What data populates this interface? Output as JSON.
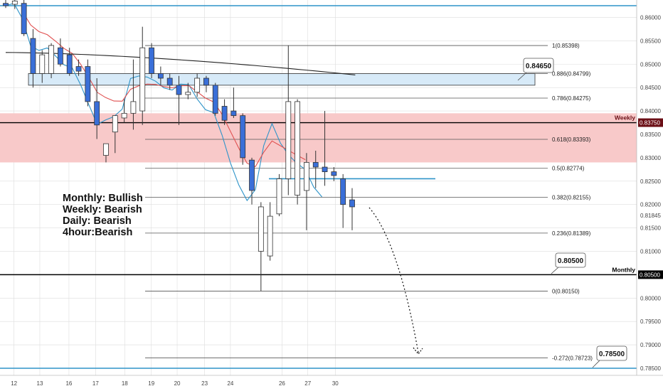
{
  "chart_data": {
    "type": "candlestick",
    "symbol_pair_note": "",
    "ylim": [
      0.7835,
      0.8645
    ],
    "price_axis": {
      "ticks": [
        "0.86000",
        "0.85500",
        "0.85000",
        "0.84500",
        "0.84000",
        "0.83500",
        "0.83000",
        "0.82500",
        "0.82000",
        "0.81500",
        "0.81000",
        "0.80500",
        "0.80000",
        "0.79500",
        "0.79000",
        "0.78500"
      ],
      "tick_values": [
        0.86,
        0.855,
        0.85,
        0.845,
        0.84,
        0.835,
        0.83,
        0.825,
        0.82,
        0.815,
        0.81,
        0.805,
        0.8,
        0.795,
        0.79,
        0.785
      ],
      "badges": [
        {
          "text": "Weekly",
          "value": 0.8375,
          "kind": "label",
          "color": "#6b0f16"
        },
        {
          "text": "0.83750",
          "value": 0.8375,
          "kind": "price",
          "bg": "#6b0f16"
        },
        {
          "text": "0.81845",
          "value": 0.81845,
          "kind": "plain"
        },
        {
          "text": "Monthly",
          "value": 0.805,
          "kind": "label",
          "color": "#000000"
        },
        {
          "text": "0.80500",
          "value": 0.805,
          "kind": "price",
          "bg": "#000000"
        }
      ]
    },
    "time_axis": {
      "labels": [
        "12",
        "13",
        "16",
        "17",
        "18",
        "19",
        "20",
        "23",
        "24",
        "26",
        "27",
        "30"
      ],
      "x_index": [
        1,
        4.1,
        7.6,
        10.8,
        14.3,
        17.5,
        20.6,
        23.9,
        27.0,
        33.2,
        36.3,
        39.6
      ]
    },
    "candles": [
      {
        "o": 0.863,
        "h": 0.864,
        "l": 0.862,
        "c": 0.8625
      },
      {
        "o": 0.8628,
        "h": 0.864,
        "l": 0.8618,
        "c": 0.8635
      },
      {
        "o": 0.863,
        "h": 0.8638,
        "l": 0.856,
        "c": 0.8565
      },
      {
        "o": 0.8555,
        "h": 0.8575,
        "l": 0.845,
        "c": 0.848
      },
      {
        "o": 0.848,
        "h": 0.853,
        "l": 0.846,
        "c": 0.852
      },
      {
        "o": 0.848,
        "h": 0.8545,
        "l": 0.847,
        "c": 0.854
      },
      {
        "o": 0.8535,
        "h": 0.8555,
        "l": 0.8495,
        "c": 0.85
      },
      {
        "o": 0.852,
        "h": 0.8535,
        "l": 0.8475,
        "c": 0.848
      },
      {
        "o": 0.8495,
        "h": 0.851,
        "l": 0.8475,
        "c": 0.8485
      },
      {
        "o": 0.8495,
        "h": 0.851,
        "l": 0.841,
        "c": 0.842
      },
      {
        "o": 0.842,
        "h": 0.847,
        "l": 0.834,
        "c": 0.837
      },
      {
        "o": 0.8305,
        "h": 0.833,
        "l": 0.829,
        "c": 0.833
      },
      {
        "o": 0.8355,
        "h": 0.839,
        "l": 0.831,
        "c": 0.839
      },
      {
        "o": 0.8385,
        "h": 0.8425,
        "l": 0.8375,
        "c": 0.8395
      },
      {
        "o": 0.8395,
        "h": 0.851,
        "l": 0.836,
        "c": 0.842
      },
      {
        "o": 0.84,
        "h": 0.858,
        "l": 0.837,
        "c": 0.8535
      },
      {
        "o": 0.8535,
        "h": 0.8545,
        "l": 0.847,
        "c": 0.848
      },
      {
        "o": 0.848,
        "h": 0.8495,
        "l": 0.8455,
        "c": 0.847
      },
      {
        "o": 0.847,
        "h": 0.848,
        "l": 0.8445,
        "c": 0.8455
      },
      {
        "o": 0.8455,
        "h": 0.8475,
        "l": 0.837,
        "c": 0.8435
      },
      {
        "o": 0.8435,
        "h": 0.846,
        "l": 0.8425,
        "c": 0.844
      },
      {
        "o": 0.844,
        "h": 0.848,
        "l": 0.843,
        "c": 0.847
      },
      {
        "o": 0.847,
        "h": 0.8475,
        "l": 0.844,
        "c": 0.8455
      },
      {
        "o": 0.8455,
        "h": 0.846,
        "l": 0.839,
        "c": 0.8395
      },
      {
        "o": 0.841,
        "h": 0.8425,
        "l": 0.837,
        "c": 0.838
      },
      {
        "o": 0.84,
        "h": 0.845,
        "l": 0.8385,
        "c": 0.839
      },
      {
        "o": 0.839,
        "h": 0.8395,
        "l": 0.8285,
        "c": 0.83
      },
      {
        "o": 0.8295,
        "h": 0.83,
        "l": 0.82,
        "c": 0.823
      },
      {
        "o": 0.81,
        "h": 0.8205,
        "l": 0.8015,
        "c": 0.8195
      },
      {
        "o": 0.809,
        "h": 0.8205,
        "l": 0.808,
        "c": 0.8175
      },
      {
        "o": 0.818,
        "h": 0.8265,
        "l": 0.8175,
        "c": 0.8255
      },
      {
        "o": 0.8255,
        "h": 0.854,
        "l": 0.822,
        "c": 0.842
      },
      {
        "o": 0.822,
        "h": 0.8425,
        "l": 0.82,
        "c": 0.842
      },
      {
        "o": 0.823,
        "h": 0.831,
        "l": 0.8145,
        "c": 0.829
      },
      {
        "o": 0.829,
        "h": 0.8315,
        "l": 0.8235,
        "c": 0.828
      },
      {
        "o": 0.828,
        "h": 0.84,
        "l": 0.824,
        "c": 0.827
      },
      {
        "o": 0.827,
        "h": 0.828,
        "l": 0.825,
        "c": 0.8262
      },
      {
        "o": 0.8255,
        "h": 0.8265,
        "l": 0.815,
        "c": 0.82
      },
      {
        "o": 0.821,
        "h": 0.8235,
        "l": 0.8145,
        "c": 0.8195
      }
    ],
    "fib_levels": [
      {
        "label": "1(0.85398)",
        "value": 0.85398
      },
      {
        "label": "0.886(0.84799)",
        "value": 0.84799
      },
      {
        "label": "0.786(0.84275)",
        "value": 0.84275
      },
      {
        "label": "0.618(0.83393)",
        "value": 0.83393
      },
      {
        "label": "0.5(0.82774)",
        "value": 0.82774
      },
      {
        "label": "0.382(0.82155)",
        "value": 0.82155
      },
      {
        "label": "0.236(0.81389)",
        "value": 0.81389
      },
      {
        "label": "0(0.80150)",
        "value": 0.8015
      },
      {
        "label": "-0.272(0.78723)",
        "value": 0.78723
      }
    ],
    "zones": [
      {
        "name": "weekly-zone",
        "from": 0.829,
        "to": 0.8395,
        "color": "#f8c9c9"
      },
      {
        "name": "daily-zone",
        "from": 0.8455,
        "to": 0.848,
        "color": "#d7eaf8"
      }
    ],
    "horizontal_lines": [
      {
        "value": 0.8625,
        "color": "#2e94c9"
      },
      {
        "value": 0.8375,
        "color": "#000000"
      },
      {
        "value": 0.805,
        "color": "#000000"
      },
      {
        "value": 0.785,
        "color": "#2e94c9"
      }
    ],
    "callouts": [
      {
        "text": "0.84650",
        "value": 0.8465
      },
      {
        "text": "0.80500",
        "value": 0.805
      },
      {
        "text": "0.78500",
        "value": 0.785
      }
    ],
    "bias_text": [
      "Monthly: Bullish",
      "Weekly: Bearish",
      "Daily: Bearish",
      "4hour:Bearish"
    ],
    "colors": {
      "bull_body": "#ffffff",
      "bear_body": "#3a6fd8",
      "wick": "#333333",
      "ema_fast": "#2e94c9",
      "ema_mid": "#e05050",
      "ma_slow": "#222222",
      "grid": "#dddddd",
      "axis_text": "#444444"
    }
  }
}
